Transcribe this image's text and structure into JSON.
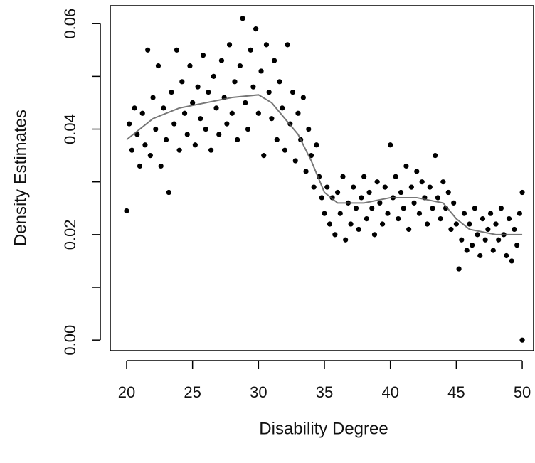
{
  "chart_data": {
    "type": "scatter",
    "x_label": "Disability  Degree",
    "y_label": "Density Estimates",
    "xlim": [
      18.76,
      50.86
    ],
    "ylim": [
      -0.002,
      0.0634
    ],
    "xticks": [
      20,
      25,
      30,
      35,
      40,
      45,
      50
    ],
    "yticks": [
      {
        "value": 0,
        "label": "0.00"
      },
      {
        "value": 0.02,
        "label": "0.02"
      },
      {
        "value": 0.04,
        "label": "0.04"
      },
      {
        "value": 0.06,
        "label": "0.06"
      }
    ],
    "yminor_ticks": [
      0.01,
      0.03,
      0.05
    ],
    "point_color": "#000000",
    "line_color": "#555555",
    "scatter": {
      "x": [
        20.0,
        20.2,
        20.4,
        20.6,
        20.8,
        21.0,
        21.2,
        21.4,
        21.6,
        21.8,
        22.0,
        22.2,
        22.4,
        22.6,
        22.8,
        23.0,
        23.2,
        23.4,
        23.6,
        23.8,
        24.0,
        24.2,
        24.4,
        24.6,
        24.8,
        25.0,
        25.2,
        25.4,
        25.6,
        25.8,
        26.0,
        26.2,
        26.4,
        26.6,
        26.8,
        27.0,
        27.2,
        27.4,
        27.6,
        27.8,
        28.0,
        28.2,
        28.4,
        28.6,
        28.8,
        29.0,
        29.2,
        29.4,
        29.6,
        29.8,
        30.0,
        30.2,
        30.4,
        30.6,
        30.8,
        31.0,
        31.2,
        31.4,
        31.6,
        31.8,
        32.0,
        32.2,
        32.4,
        32.6,
        32.8,
        33.0,
        33.2,
        33.4,
        33.6,
        33.8,
        34.0,
        34.2,
        34.4,
        34.6,
        34.8,
        35.0,
        35.2,
        35.4,
        35.6,
        35.8,
        36.0,
        36.2,
        36.4,
        36.6,
        36.8,
        37.0,
        37.2,
        37.4,
        37.6,
        37.8,
        38.0,
        38.2,
        38.4,
        38.6,
        38.8,
        39.0,
        39.2,
        39.4,
        39.6,
        39.8,
        40.0,
        40.2,
        40.4,
        40.6,
        40.8,
        41.0,
        41.2,
        41.4,
        41.6,
        41.8,
        42.0,
        42.2,
        42.4,
        42.6,
        42.8,
        43.0,
        43.2,
        43.4,
        43.6,
        43.8,
        44.0,
        44.2,
        44.4,
        44.6,
        44.8,
        45.0,
        45.2,
        45.4,
        45.6,
        45.8,
        46.0,
        46.2,
        46.4,
        46.6,
        46.8,
        47.0,
        47.2,
        47.4,
        47.6,
        47.8,
        48.0,
        48.2,
        48.4,
        48.6,
        48.8,
        49.0,
        49.2,
        49.4,
        49.6,
        49.8,
        50.0,
        50.0
      ],
      "y": [
        0.0245,
        0.041,
        0.036,
        0.044,
        0.039,
        0.033,
        0.043,
        0.037,
        0.055,
        0.035,
        0.046,
        0.04,
        0.052,
        0.033,
        0.044,
        0.038,
        0.028,
        0.047,
        0.041,
        0.055,
        0.036,
        0.049,
        0.043,
        0.039,
        0.052,
        0.045,
        0.037,
        0.048,
        0.042,
        0.054,
        0.04,
        0.047,
        0.036,
        0.05,
        0.044,
        0.039,
        0.053,
        0.046,
        0.041,
        0.056,
        0.043,
        0.049,
        0.038,
        0.052,
        0.061,
        0.045,
        0.04,
        0.055,
        0.048,
        0.059,
        0.043,
        0.051,
        0.035,
        0.056,
        0.047,
        0.042,
        0.053,
        0.038,
        0.049,
        0.044,
        0.036,
        0.056,
        0.041,
        0.047,
        0.034,
        0.043,
        0.038,
        0.046,
        0.032,
        0.04,
        0.035,
        0.029,
        0.037,
        0.031,
        0.027,
        0.024,
        0.029,
        0.022,
        0.027,
        0.02,
        0.028,
        0.024,
        0.031,
        0.019,
        0.026,
        0.022,
        0.029,
        0.025,
        0.021,
        0.027,
        0.031,
        0.023,
        0.028,
        0.025,
        0.02,
        0.03,
        0.026,
        0.022,
        0.029,
        0.024,
        0.037,
        0.027,
        0.031,
        0.023,
        0.028,
        0.025,
        0.033,
        0.021,
        0.029,
        0.026,
        0.032,
        0.024,
        0.03,
        0.027,
        0.022,
        0.029,
        0.025,
        0.035,
        0.027,
        0.023,
        0.03,
        0.025,
        0.028,
        0.021,
        0.026,
        0.022,
        0.0135,
        0.019,
        0.024,
        0.017,
        0.022,
        0.018,
        0.025,
        0.02,
        0.016,
        0.023,
        0.019,
        0.021,
        0.024,
        0.017,
        0.022,
        0.019,
        0.025,
        0.02,
        0.016,
        0.023,
        0.015,
        0.021,
        0.018,
        0.024,
        0.028,
        0.0
      ]
    },
    "smooth": {
      "x": [
        20,
        22,
        24,
        26,
        28,
        30,
        31,
        32,
        33,
        34,
        35,
        36,
        38,
        40,
        42,
        44,
        45,
        46,
        48,
        50
      ],
      "y": [
        0.038,
        0.042,
        0.044,
        0.045,
        0.046,
        0.0465,
        0.045,
        0.042,
        0.039,
        0.034,
        0.028,
        0.026,
        0.026,
        0.027,
        0.027,
        0.026,
        0.023,
        0.021,
        0.02,
        0.02
      ]
    }
  }
}
